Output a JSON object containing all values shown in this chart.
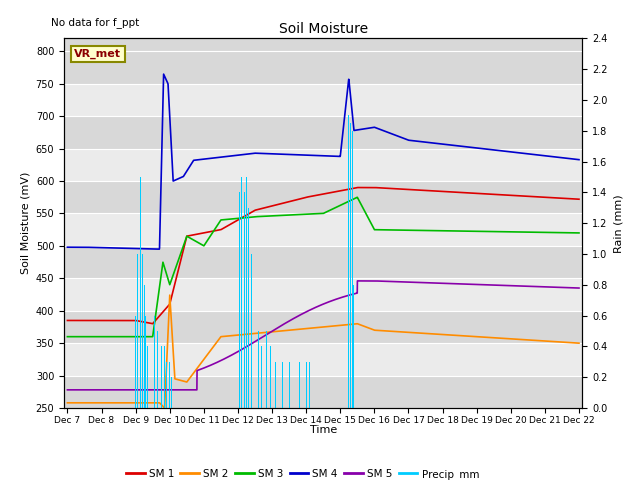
{
  "title": "Soil Moisture",
  "subtitle": "No data for f_ppt",
  "ylabel_left": "Soil Moisture (mV)",
  "ylabel_right": "Rain (mm)",
  "xlabel": "Time",
  "annotation": "VR_met",
  "ylim_left": [
    250,
    820
  ],
  "ylim_right": [
    0.0,
    2.4
  ],
  "yticks_left": [
    250,
    300,
    350,
    400,
    450,
    500,
    550,
    600,
    650,
    700,
    750,
    800
  ],
  "yticks_right": [
    0.0,
    0.2,
    0.4,
    0.6,
    0.8,
    1.0,
    1.2,
    1.4,
    1.6,
    1.8,
    2.0,
    2.2,
    2.4
  ],
  "colors": {
    "SM1": "#dd0000",
    "SM2": "#ff8c00",
    "SM3": "#00bb00",
    "SM4": "#0000cc",
    "SM5": "#8800aa",
    "precip": "#00ccff"
  },
  "bg_dark": "#d8d8d8",
  "bg_light": "#ebebeb",
  "line_width": 1.2,
  "xtick_labels": [
    "Dec 7",
    "Dec 8",
    "Dec 9",
    "Dec 10",
    "Dec 11",
    "Dec 12",
    "Dec 13",
    "Dec 14",
    "Dec 15",
    "Dec 16",
    "Dec 17",
    "Dec 18",
    "Dec 19",
    "Dec 20",
    "Dec 21",
    "Dec 22"
  ],
  "legend_labels": [
    "SM 1",
    "SM 2",
    "SM 3",
    "SM 4",
    "SM 5",
    "Precip_mm"
  ]
}
